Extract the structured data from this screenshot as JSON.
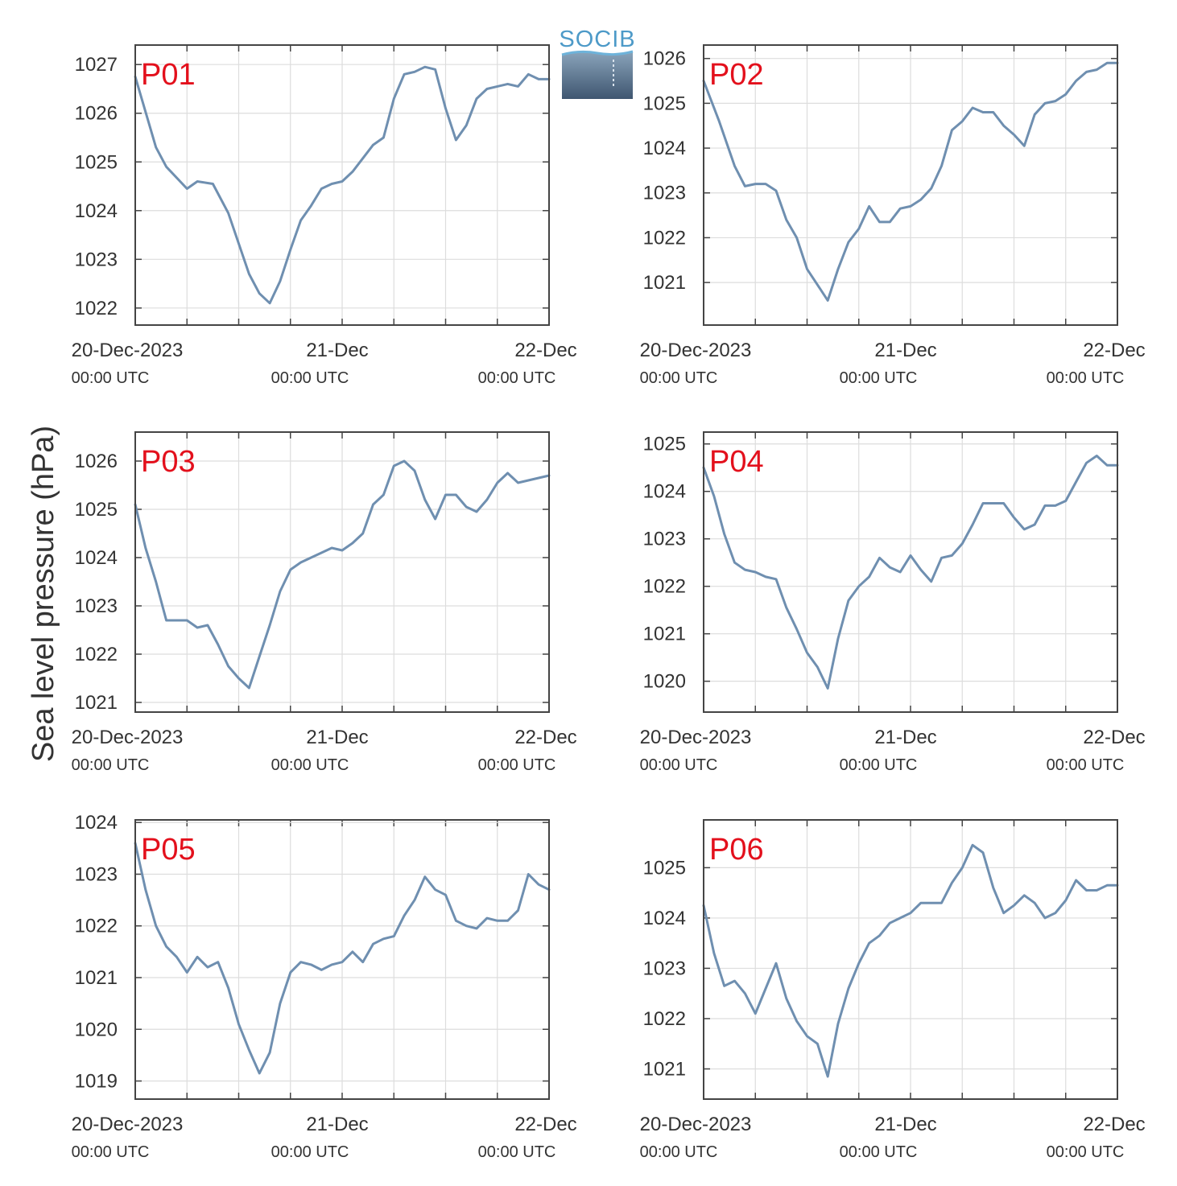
{
  "ylabel": "Sea level pressure (hPa)",
  "logo": {
    "text": "SOCIB"
  },
  "colors": {
    "line": "#6f8fb0",
    "label": "#e3101c",
    "grid": "#dddddd",
    "axis": "#444444"
  },
  "x_ticks": [
    {
      "day": 0,
      "top": "20-Dec-2023",
      "bottom": "00:00 UTC"
    },
    {
      "day": 1,
      "top": "21-Dec",
      "bottom": "00:00 UTC"
    },
    {
      "day": 2,
      "top": "22-Dec",
      "bottom": "00:00 UTC"
    }
  ],
  "chart_data": [
    {
      "type": "line",
      "label": "P01",
      "x_unit": "days since 20-Dec-2023 00:00 UTC",
      "xlim": [
        0,
        2
      ],
      "ylim": [
        1021.65,
        1027.4
      ],
      "yticks": [
        1022,
        1023,
        1024,
        1025,
        1026,
        1027
      ],
      "x": [
        0,
        0.1,
        0.15,
        0.25,
        0.3,
        0.375,
        0.45,
        0.55,
        0.6,
        0.65,
        0.7,
        0.75,
        0.8,
        0.85,
        0.9,
        0.95,
        1.0,
        1.05,
        1.15,
        1.2,
        1.25,
        1.3,
        1.35,
        1.4,
        1.45,
        1.5,
        1.55,
        1.6,
        1.65,
        1.7,
        1.75,
        1.8,
        1.85,
        1.9,
        1.95,
        2.0
      ],
      "y": [
        1026.75,
        1025.3,
        1024.9,
        1024.45,
        1024.6,
        1024.55,
        1023.95,
        1022.7,
        1022.3,
        1022.1,
        1022.55,
        1023.2,
        1023.8,
        1024.1,
        1024.45,
        1024.55,
        1024.6,
        1024.8,
        1025.35,
        1025.5,
        1026.3,
        1026.8,
        1026.85,
        1026.95,
        1026.9,
        1026.1,
        1025.45,
        1025.75,
        1026.3,
        1026.5,
        1026.55,
        1026.6,
        1026.55,
        1026.8,
        1026.7,
        1026.7
      ]
    },
    {
      "type": "line",
      "label": "P02",
      "x_unit": "days since 20-Dec-2023 00:00 UTC",
      "xlim": [
        0,
        2
      ],
      "ylim": [
        1020.05,
        1026.3
      ],
      "yticks": [
        1021,
        1022,
        1023,
        1024,
        1025,
        1026
      ],
      "x": [
        0,
        0.075,
        0.15,
        0.2,
        0.25,
        0.3,
        0.35,
        0.4,
        0.45,
        0.5,
        0.55,
        0.6,
        0.65,
        0.7,
        0.75,
        0.8,
        0.85,
        0.9,
        0.95,
        1.0,
        1.05,
        1.1,
        1.15,
        1.2,
        1.25,
        1.3,
        1.35,
        1.4,
        1.45,
        1.5,
        1.55,
        1.6,
        1.65,
        1.7,
        1.75,
        1.8,
        1.85,
        1.9,
        1.95,
        2.0
      ],
      "y": [
        1025.5,
        1024.6,
        1023.6,
        1023.15,
        1023.2,
        1023.2,
        1023.05,
        1022.4,
        1022.0,
        1021.3,
        1020.95,
        1020.6,
        1021.3,
        1021.9,
        1022.2,
        1022.7,
        1022.35,
        1022.35,
        1022.65,
        1022.7,
        1022.85,
        1023.1,
        1023.6,
        1024.4,
        1024.6,
        1024.9,
        1024.8,
        1024.8,
        1024.5,
        1024.3,
        1024.05,
        1024.75,
        1025.0,
        1025.05,
        1025.2,
        1025.5,
        1025.7,
        1025.75,
        1025.9,
        1025.9
      ]
    },
    {
      "type": "line",
      "label": "P03",
      "x_unit": "days since 20-Dec-2023 00:00 UTC",
      "xlim": [
        0,
        2
      ],
      "ylim": [
        1020.8,
        1026.6
      ],
      "yticks": [
        1021,
        1022,
        1023,
        1024,
        1025,
        1026
      ],
      "x": [
        0,
        0.05,
        0.1,
        0.15,
        0.25,
        0.3,
        0.35,
        0.4,
        0.45,
        0.5,
        0.55,
        0.6,
        0.65,
        0.7,
        0.75,
        0.8,
        0.85,
        0.9,
        0.95,
        1.0,
        1.05,
        1.1,
        1.15,
        1.2,
        1.25,
        1.3,
        1.35,
        1.4,
        1.45,
        1.5,
        1.55,
        1.6,
        1.65,
        1.7,
        1.75,
        1.8,
        1.85,
        1.9,
        1.95,
        2.0
      ],
      "y": [
        1025.1,
        1024.2,
        1023.5,
        1022.7,
        1022.7,
        1022.55,
        1022.6,
        1022.2,
        1021.75,
        1021.5,
        1021.3,
        1021.95,
        1022.6,
        1023.3,
        1023.75,
        1023.9,
        1024.0,
        1024.1,
        1024.2,
        1024.15,
        1024.3,
        1024.5,
        1025.1,
        1025.3,
        1025.9,
        1026.0,
        1025.8,
        1025.2,
        1024.8,
        1025.3,
        1025.3,
        1025.05,
        1024.95,
        1025.2,
        1025.55,
        1025.75,
        1025.55,
        1025.6,
        1025.65,
        1025.7
      ]
    },
    {
      "type": "line",
      "label": "P04",
      "x_unit": "days since 20-Dec-2023 00:00 UTC",
      "xlim": [
        0,
        2
      ],
      "ylim": [
        1019.35,
        1025.25
      ],
      "yticks": [
        1020,
        1021,
        1022,
        1023,
        1024,
        1025
      ],
      "x": [
        0,
        0.05,
        0.1,
        0.15,
        0.2,
        0.25,
        0.3,
        0.35,
        0.4,
        0.45,
        0.5,
        0.55,
        0.6,
        0.65,
        0.7,
        0.75,
        0.8,
        0.85,
        0.9,
        0.95,
        1.0,
        1.05,
        1.1,
        1.15,
        1.2,
        1.25,
        1.3,
        1.35,
        1.4,
        1.45,
        1.5,
        1.55,
        1.6,
        1.65,
        1.7,
        1.75,
        1.8,
        1.85,
        1.9,
        1.95,
        2.0
      ],
      "y": [
        1024.5,
        1023.9,
        1023.1,
        1022.5,
        1022.35,
        1022.3,
        1022.2,
        1022.15,
        1021.55,
        1021.1,
        1020.6,
        1020.3,
        1019.85,
        1020.9,
        1021.7,
        1022.0,
        1022.2,
        1022.6,
        1022.4,
        1022.3,
        1022.65,
        1022.35,
        1022.1,
        1022.6,
        1022.65,
        1022.9,
        1023.3,
        1023.75,
        1023.75,
        1023.75,
        1023.45,
        1023.2,
        1023.3,
        1023.7,
        1023.7,
        1023.8,
        1024.2,
        1024.6,
        1024.75,
        1024.55,
        1024.55
      ]
    },
    {
      "type": "line",
      "label": "P05",
      "x_unit": "days since 20-Dec-2023 00:00 UTC",
      "xlim": [
        0,
        2
      ],
      "ylim": [
        1018.65,
        1024.05
      ],
      "yticks": [
        1019,
        1020,
        1021,
        1022,
        1023,
        1024
      ],
      "x": [
        0,
        0.05,
        0.1,
        0.15,
        0.2,
        0.25,
        0.3,
        0.35,
        0.4,
        0.45,
        0.5,
        0.55,
        0.6,
        0.65,
        0.7,
        0.75,
        0.8,
        0.85,
        0.9,
        0.95,
        1.0,
        1.05,
        1.1,
        1.15,
        1.2,
        1.25,
        1.3,
        1.35,
        1.4,
        1.45,
        1.5,
        1.55,
        1.6,
        1.65,
        1.7,
        1.75,
        1.8,
        1.85,
        1.9,
        1.95,
        2.0
      ],
      "y": [
        1023.6,
        1022.7,
        1022.0,
        1021.6,
        1021.4,
        1021.1,
        1021.4,
        1021.2,
        1021.3,
        1020.8,
        1020.1,
        1019.6,
        1019.15,
        1019.55,
        1020.5,
        1021.1,
        1021.3,
        1021.25,
        1021.15,
        1021.25,
        1021.3,
        1021.5,
        1021.3,
        1021.65,
        1021.75,
        1021.8,
        1022.2,
        1022.5,
        1022.95,
        1022.7,
        1022.6,
        1022.1,
        1022.0,
        1021.95,
        1022.15,
        1022.1,
        1022.1,
        1022.3,
        1023.0,
        1022.8,
        1022.7
      ]
    },
    {
      "type": "line",
      "label": "P06",
      "x_unit": "days since 20-Dec-2023 00:00 UTC",
      "xlim": [
        0,
        2
      ],
      "ylim": [
        1020.4,
        1025.95
      ],
      "yticks": [
        1021,
        1022,
        1023,
        1024,
        1025
      ],
      "x": [
        0,
        0.05,
        0.1,
        0.15,
        0.2,
        0.25,
        0.3,
        0.35,
        0.4,
        0.45,
        0.5,
        0.55,
        0.6,
        0.65,
        0.7,
        0.75,
        0.8,
        0.85,
        0.9,
        0.95,
        1.0,
        1.05,
        1.1,
        1.15,
        1.2,
        1.25,
        1.3,
        1.35,
        1.4,
        1.45,
        1.5,
        1.55,
        1.6,
        1.65,
        1.7,
        1.75,
        1.8,
        1.85,
        1.9,
        1.95,
        2.0
      ],
      "y": [
        1024.25,
        1023.3,
        1022.65,
        1022.75,
        1022.5,
        1022.1,
        1022.6,
        1023.1,
        1022.4,
        1021.95,
        1021.65,
        1021.5,
        1020.85,
        1021.9,
        1022.6,
        1023.1,
        1023.5,
        1023.65,
        1023.9,
        1024.0,
        1024.1,
        1024.3,
        1024.3,
        1024.3,
        1024.7,
        1025.0,
        1025.45,
        1025.3,
        1024.6,
        1024.1,
        1024.25,
        1024.45,
        1024.3,
        1024.0,
        1024.1,
        1024.35,
        1024.75,
        1024.55,
        1024.55,
        1024.65,
        1024.65
      ]
    }
  ]
}
